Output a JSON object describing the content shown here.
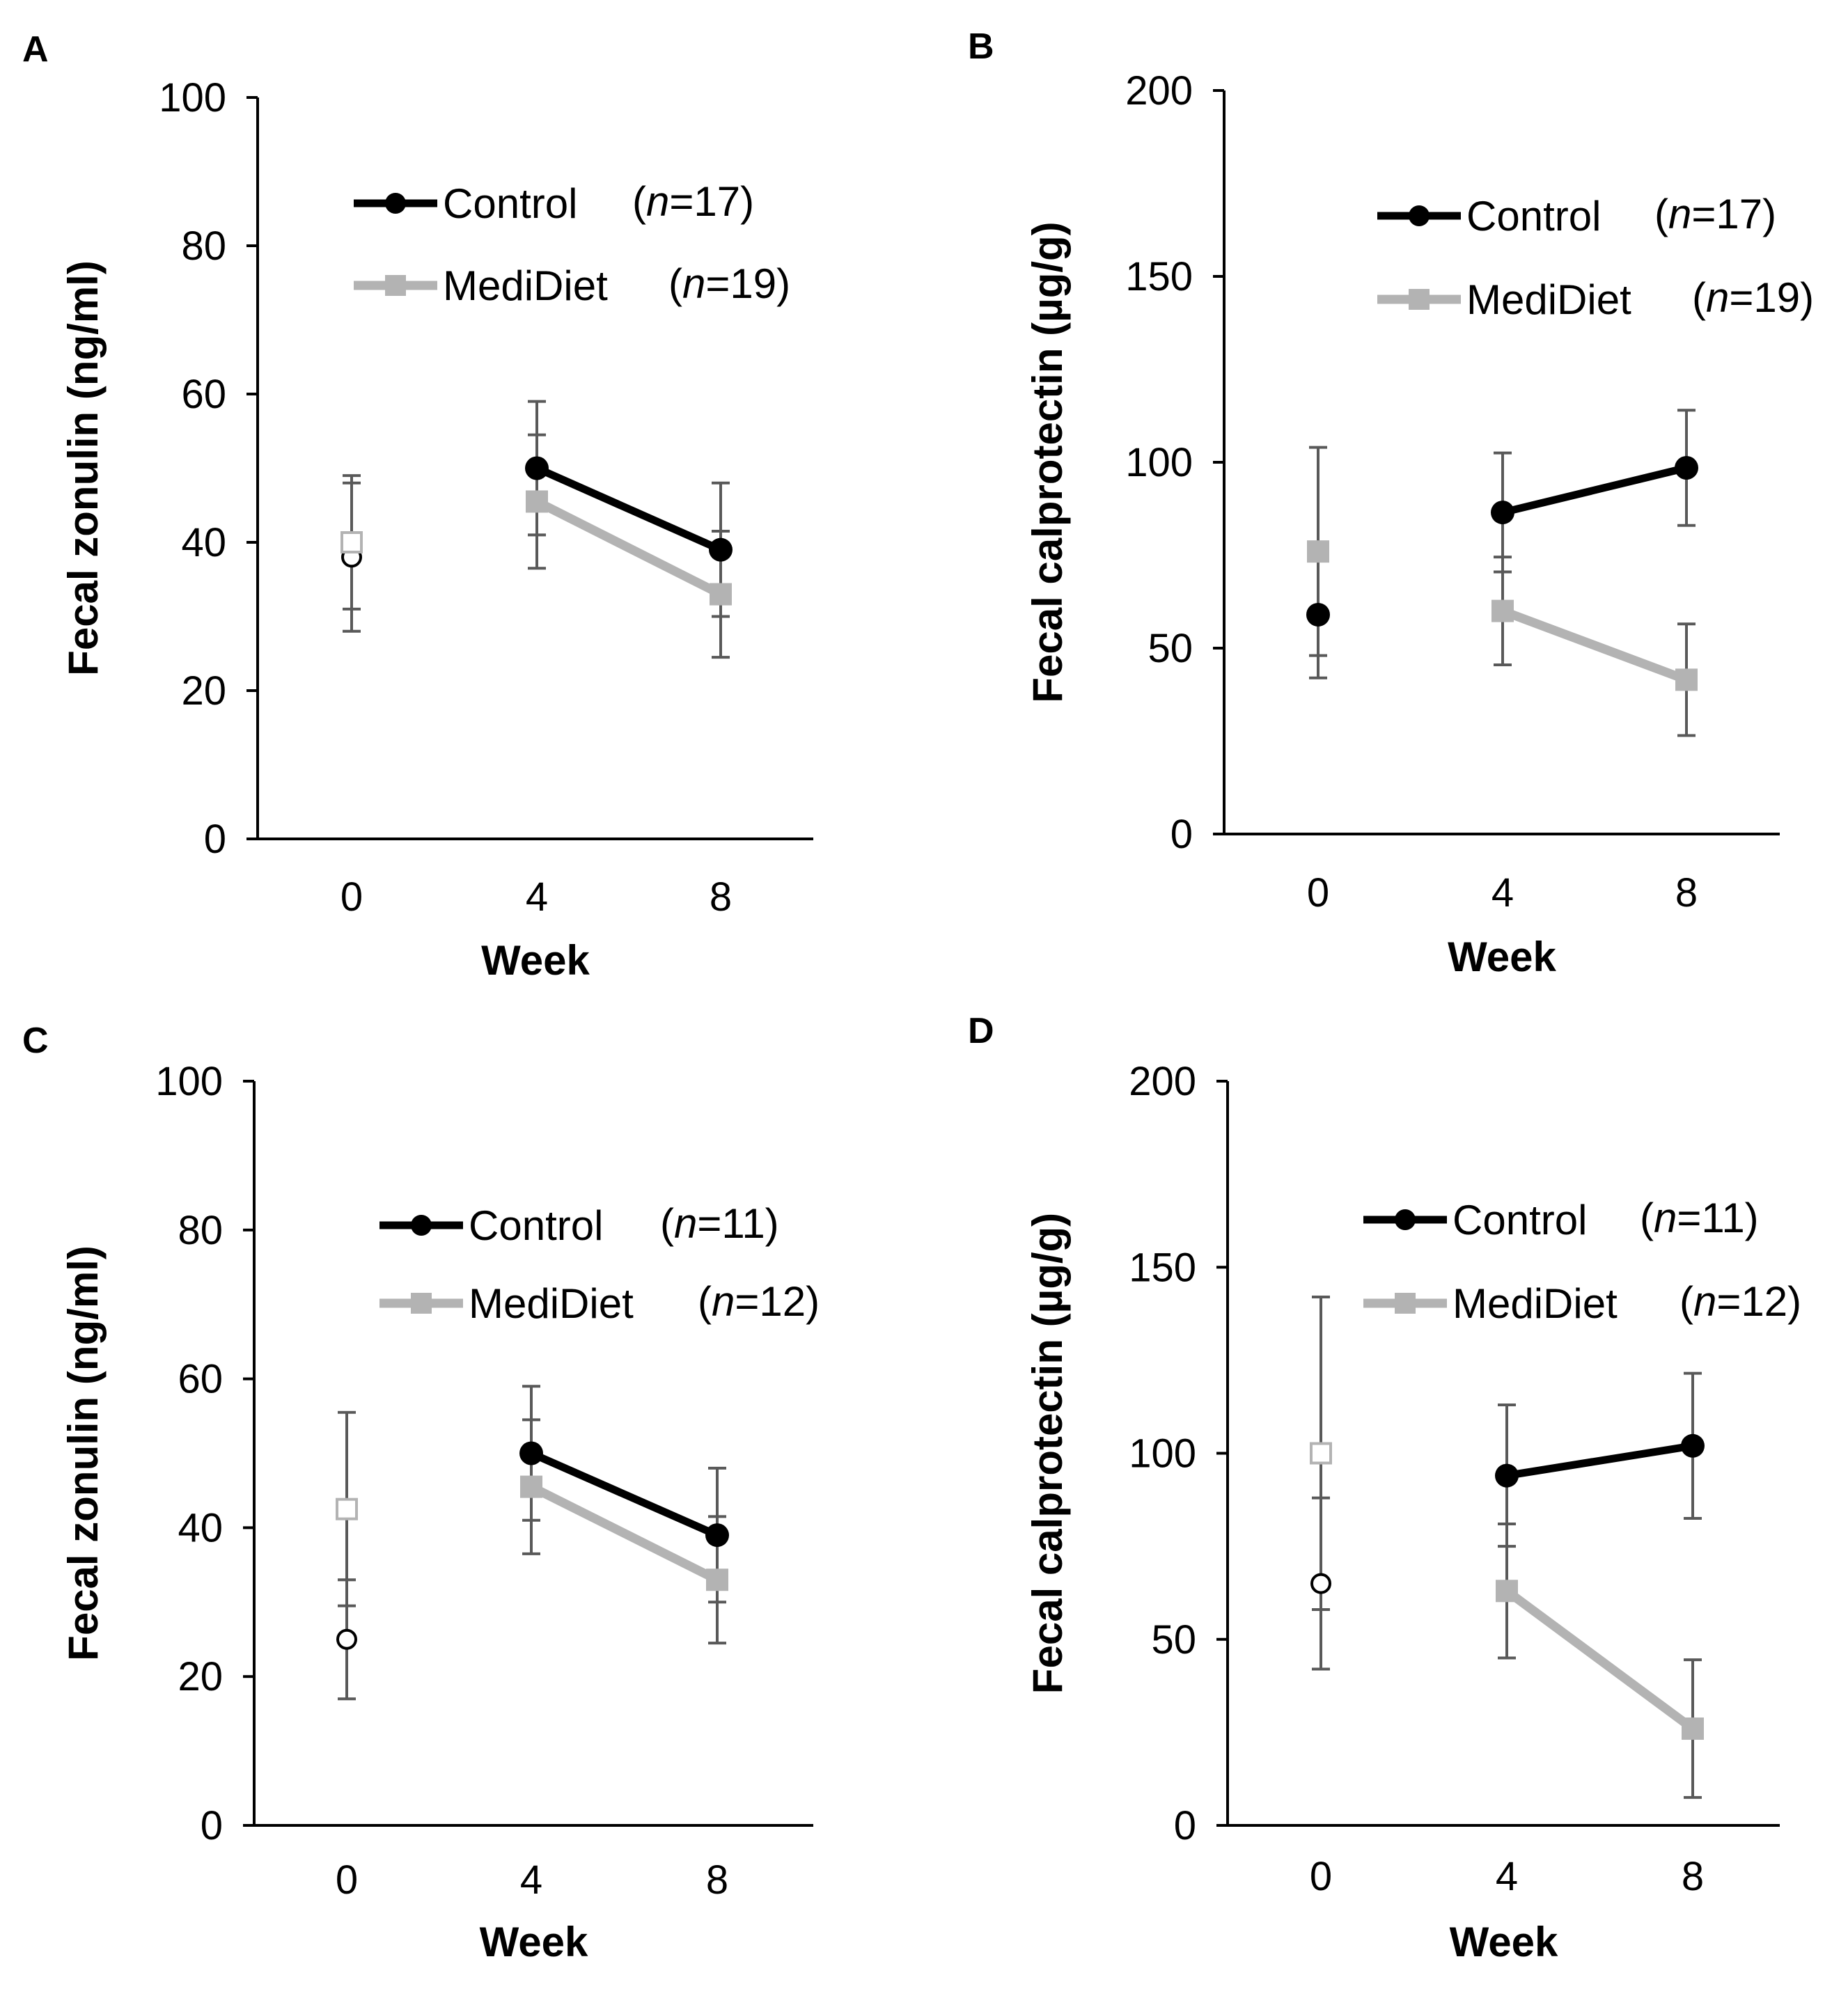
{
  "figure": {
    "panels": [
      "A",
      "B",
      "C",
      "D"
    ]
  },
  "chart_data": [
    {
      "panel": "A",
      "type": "line",
      "xlabel": "Week",
      "ylabel": "Fecal zonulin (ng/ml)",
      "categories": [
        "0",
        "4",
        "8"
      ],
      "ylim": [
        0,
        100
      ],
      "yticks": [
        "0",
        "20",
        "40",
        "60",
        "80",
        "100"
      ],
      "legend_position": "top-right",
      "series": [
        {
          "name": "Control",
          "n_label": "(n=17)",
          "n_prefix": "(",
          "n_italic": "n",
          "n_suffix": "=17)",
          "color": "#000000",
          "marker": "circle",
          "values": [
            38,
            50,
            39
          ],
          "errors": [
            10,
            9,
            9
          ],
          "baseline_hollow": true
        },
        {
          "name": "MediDiet",
          "n_label": "(n=19)",
          "n_prefix": "(",
          "n_italic": "n",
          "n_suffix": "=19)",
          "color": "#b3b3b3",
          "marker": "square",
          "values": [
            40,
            45.5,
            33
          ],
          "errors": [
            9,
            9,
            8.5
          ],
          "baseline_hollow": true
        }
      ]
    },
    {
      "panel": "B",
      "type": "line",
      "xlabel": "Week",
      "ylabel": "Fecal calprotectin (µg/g)",
      "categories": [
        "0",
        "4",
        "8"
      ],
      "ylim": [
        0,
        200
      ],
      "yticks": [
        "0",
        "50",
        "100",
        "150",
        "200"
      ],
      "legend_position": "top-right",
      "series": [
        {
          "name": "Control",
          "n_label": "(n=17)",
          "n_prefix": "(",
          "n_italic": "n",
          "n_suffix": "=17)",
          "color": "#000000",
          "marker": "circle",
          "values": [
            59,
            86.5,
            98.5
          ],
          "errors": [
            17,
            16,
            15.5
          ],
          "baseline_hollow": false
        },
        {
          "name": "MediDiet",
          "n_label": "(n=19)",
          "n_prefix": "(",
          "n_italic": "n",
          "n_suffix": "=19)",
          "color": "#b3b3b3",
          "marker": "square",
          "values": [
            76,
            60,
            41.5
          ],
          "errors": [
            28,
            14.5,
            15
          ],
          "baseline_hollow": false
        }
      ]
    },
    {
      "panel": "C",
      "type": "line",
      "xlabel": "Week",
      "ylabel": "Fecal zonulin (ng/ml)",
      "categories": [
        "0",
        "4",
        "8"
      ],
      "ylim": [
        0,
        100
      ],
      "yticks": [
        "0",
        "20",
        "40",
        "60",
        "80",
        "100"
      ],
      "legend_position": "top-right",
      "series": [
        {
          "name": "Control",
          "n_label": "(n=11)",
          "n_prefix": "(",
          "n_italic": "n",
          "n_suffix": "=11)",
          "color": "#000000",
          "marker": "circle",
          "values": [
            25,
            50,
            39
          ],
          "errors": [
            8,
            9,
            9
          ],
          "baseline_hollow": true
        },
        {
          "name": "MediDiet",
          "n_label": "(n=12)",
          "n_prefix": "(",
          "n_italic": "n",
          "n_suffix": "=12)",
          "color": "#b3b3b3",
          "marker": "square",
          "values": [
            42.5,
            45.5,
            33
          ],
          "errors": [
            13,
            9,
            8.5
          ],
          "baseline_hollow": true
        }
      ]
    },
    {
      "panel": "D",
      "type": "line",
      "xlabel": "Week",
      "ylabel": "Fecal calprotectin (µg/g)",
      "categories": [
        "0",
        "4",
        "8"
      ],
      "ylim": [
        0,
        200
      ],
      "yticks": [
        "0",
        "50",
        "100",
        "150",
        "200"
      ],
      "legend_position": "top-right",
      "series": [
        {
          "name": "Control",
          "n_label": "(n=11)",
          "n_prefix": "(",
          "n_italic": "n",
          "n_suffix": "=11)",
          "color": "#000000",
          "marker": "circle",
          "values": [
            65,
            94,
            102
          ],
          "errors": [
            23,
            19,
            19.5
          ],
          "baseline_hollow": true
        },
        {
          "name": "MediDiet",
          "n_label": "(n=12)",
          "n_prefix": "(",
          "n_italic": "n",
          "n_suffix": "=12)",
          "color": "#b3b3b3",
          "marker": "square",
          "values": [
            100,
            63,
            26
          ],
          "errors": [
            42,
            18,
            18.5
          ],
          "baseline_hollow": true
        }
      ]
    }
  ]
}
